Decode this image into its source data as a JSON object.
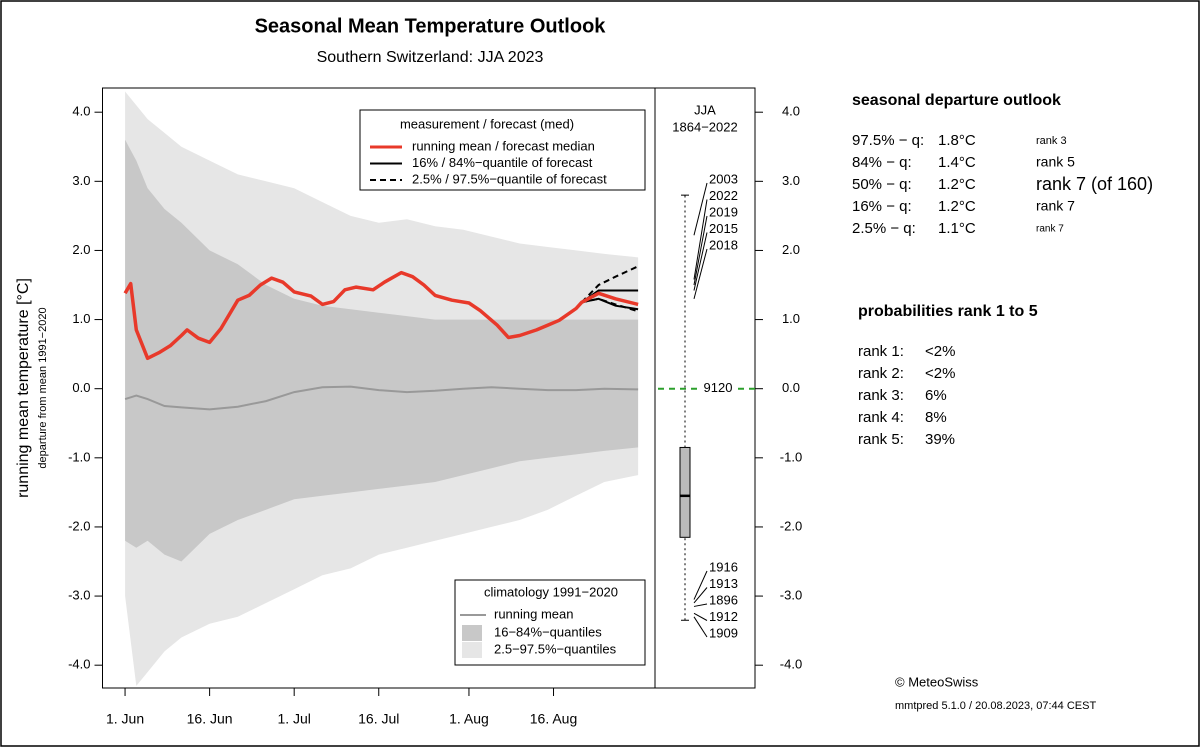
{
  "chart_data": {
    "type": "line",
    "title": "Seasonal Mean Temperature Outlook",
    "subtitle": "Southern Switzerland: JJA 2023",
    "ylabel": "running mean temperature [°C]",
    "ylabel_sub": "departure from mean 1991−2020",
    "xlim": [
      -4,
      94
    ],
    "xticks": [
      {
        "value": 0,
        "label": "1. Jun"
      },
      {
        "value": 15,
        "label": "16. Jun"
      },
      {
        "value": 30,
        "label": "1. Jul"
      },
      {
        "value": 45,
        "label": "16. Jul"
      },
      {
        "value": 61,
        "label": "1. Aug"
      },
      {
        "value": 76,
        "label": "16. Aug"
      }
    ],
    "ylim": [
      -4.33,
      4.35
    ],
    "yticks": [
      {
        "value": -4,
        "label": "-4.0"
      },
      {
        "value": -3,
        "label": "-3.0"
      },
      {
        "value": -2,
        "label": "-2.0"
      },
      {
        "value": -1,
        "label": "-1.0"
      },
      {
        "value": 0,
        "label": "0.0"
      },
      {
        "value": 1,
        "label": "1.0"
      },
      {
        "value": 2,
        "label": "2.0"
      },
      {
        "value": 3,
        "label": "3.0"
      },
      {
        "value": 4,
        "label": "4.0"
      }
    ],
    "forecast": {
      "legend_title": "measurement / forecast (med)",
      "median": {
        "name": "running mean / forecast median",
        "color": "#e8392a",
        "x": [
          0,
          1,
          2,
          4,
          6,
          8,
          10,
          11,
          13,
          15,
          17,
          20,
          22,
          24,
          26,
          28,
          30,
          33,
          35,
          37,
          39,
          41,
          44,
          46,
          49,
          51,
          53,
          55,
          58,
          61,
          63,
          66,
          68,
          70,
          73,
          75,
          77,
          80,
          81,
          84,
          87,
          91
        ],
        "values": [
          1.38,
          1.52,
          0.85,
          0.44,
          0.52,
          0.62,
          0.77,
          0.85,
          0.73,
          0.67,
          0.87,
          1.28,
          1.35,
          1.5,
          1.6,
          1.54,
          1.4,
          1.34,
          1.22,
          1.26,
          1.43,
          1.47,
          1.43,
          1.54,
          1.68,
          1.62,
          1.5,
          1.35,
          1.28,
          1.24,
          1.13,
          0.92,
          0.74,
          0.77,
          0.85,
          0.92,
          0.99,
          1.16,
          1.25,
          1.38,
          1.3,
          1.22
        ]
      },
      "q16_84": {
        "name": "16% / 84%−quantile of forecast",
        "color": "#000000",
        "x": [
          81,
          84,
          87,
          91
        ],
        "lower": [
          1.25,
          1.3,
          1.2,
          1.15
        ],
        "upper": [
          1.25,
          1.42,
          1.42,
          1.42
        ]
      },
      "q2_97": {
        "name": "2.5% / 97.5%−quantile of forecast",
        "color": "#000000",
        "x": [
          81,
          84,
          87,
          91
        ],
        "lower": [
          1.25,
          1.3,
          1.22,
          1.12
        ],
        "upper": [
          1.25,
          1.5,
          1.62,
          1.77
        ]
      }
    },
    "climatology": {
      "legend_title": "climatology 1991−2020",
      "x": [
        0,
        2,
        4,
        7,
        10,
        15,
        20,
        25,
        30,
        35,
        40,
        45,
        50,
        55,
        60,
        65,
        70,
        75,
        80,
        85,
        91
      ],
      "mean": {
        "name": "running mean",
        "color": "#999999",
        "values": [
          -0.15,
          -0.1,
          -0.15,
          -0.25,
          -0.27,
          -0.3,
          -0.26,
          -0.18,
          -0.05,
          0.02,
          0.03,
          -0.02,
          -0.05,
          -0.03,
          0.0,
          0.02,
          0.0,
          -0.02,
          -0.02,
          0.0,
          -0.01
        ]
      },
      "band16_84": {
        "name": "16−84%−quantiles",
        "color": "#c8c8c8",
        "upper": [
          3.6,
          3.3,
          2.9,
          2.6,
          2.4,
          2.0,
          1.8,
          1.5,
          1.3,
          1.2,
          1.15,
          1.1,
          1.05,
          1.0,
          1.0,
          1.0,
          1.0,
          1.0,
          1.0,
          1.0,
          1.0
        ],
        "lower": [
          -2.2,
          -2.3,
          -2.2,
          -2.4,
          -2.5,
          -2.1,
          -1.9,
          -1.75,
          -1.6,
          -1.55,
          -1.5,
          -1.45,
          -1.4,
          -1.35,
          -1.25,
          -1.15,
          -1.05,
          -1.0,
          -0.95,
          -0.9,
          -0.85
        ]
      },
      "band2_97": {
        "name": "2.5−97.5%−quantiles",
        "color": "#e6e6e6",
        "upper": [
          4.3,
          4.1,
          3.9,
          3.7,
          3.5,
          3.3,
          3.1,
          3.0,
          2.9,
          2.7,
          2.5,
          2.4,
          2.45,
          2.35,
          2.3,
          2.2,
          2.1,
          2.05,
          2.0,
          1.95,
          1.9
        ],
        "lower": [
          -3.0,
          -4.3,
          -4.1,
          -3.8,
          -3.6,
          -3.4,
          -3.3,
          -3.1,
          -2.9,
          -2.7,
          -2.6,
          -2.4,
          -2.3,
          -2.2,
          -2.1,
          -2.0,
          -1.9,
          -1.75,
          -1.55,
          -1.35,
          -1.25
        ]
      }
    },
    "jja_panel": {
      "title": "JJA",
      "period": "1864−2022",
      "box": {
        "whisker_low": -3.35,
        "q1": -2.15,
        "median": -1.55,
        "q3": -0.85,
        "whisker_high": 2.8
      },
      "warm_color": "#e8392a",
      "cold_color": "#999999",
      "warm_years": [
        {
          "label": "2003",
          "value": 2.22
        },
        {
          "label": "2022",
          "value": 1.58
        },
        {
          "label": "2019",
          "value": 1.5
        },
        {
          "label": "2015",
          "value": 1.42
        },
        {
          "label": "2018",
          "value": 1.3
        }
      ],
      "cold_years": [
        {
          "label": "1916",
          "value": -3.05
        },
        {
          "label": "1913",
          "value": -3.1
        },
        {
          "label": "1896",
          "value": -3.15
        },
        {
          "label": "1912",
          "value": -3.25
        },
        {
          "label": "1909",
          "value": -3.3
        }
      ],
      "current": {
        "label": "9120",
        "value": 0,
        "color": "#2ca02c"
      }
    },
    "outlook": {
      "title": "seasonal departure outlook",
      "rows": [
        {
          "quantile": "97.5% − q:",
          "value": "1.8°C",
          "rank": "rank 3"
        },
        {
          "quantile": "84% − q:",
          "value": "1.4°C",
          "rank": "rank 5"
        },
        {
          "quantile": "50% − q:",
          "value": "1.2°C",
          "rank": "rank 7 (of 160)"
        },
        {
          "quantile": "16% − q:",
          "value": "1.2°C",
          "rank": "rank 7"
        },
        {
          "quantile": "2.5% − q:",
          "value": "1.1°C",
          "rank": "rank 7"
        }
      ]
    },
    "probabilities": {
      "title": "probabilities rank 1 to 5",
      "rows": [
        {
          "rank": "rank 1:",
          "prob": "<2%"
        },
        {
          "rank": "rank 2:",
          "prob": "<2%"
        },
        {
          "rank": "rank 3:",
          "prob": "6%"
        },
        {
          "rank": "rank 4:",
          "prob": "8%"
        },
        {
          "rank": "rank 5:",
          "prob": "39%"
        }
      ]
    },
    "credit": "© MeteoSwiss",
    "version": "mmtpred 5.1.0 / 20.08.2023, 07:44 CEST"
  }
}
